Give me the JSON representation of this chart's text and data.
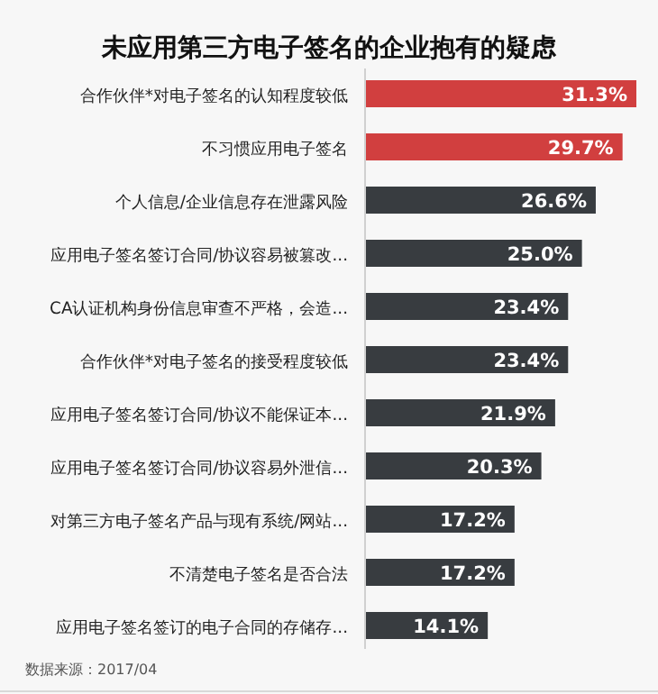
{
  "chart_data": {
    "type": "bar",
    "orientation": "horizontal",
    "title": "未应用第三方电子签名的企业抱有的疑虑",
    "categories": [
      "合作伙伴*对电子签名的认知程度较低",
      "不习惯应用电子签名",
      "个人信息/企业信息存在泄露风险",
      "应用电子签名签订合同/协议容易被篡改...",
      "CA认证机构身份信息审查不严格，会造...",
      "合作伙伴*对电子签名的接受程度较低",
      "应用电子签名签订合同/协议不能保证本...",
      "应用电子签名签订合同/协议容易外泄信...",
      "对第三方电子签名产品与现有系统/网站...",
      "不清楚电子签名是否合法",
      "应用电子签名签订的电子合同的存储存..."
    ],
    "values": [
      31.3,
      29.7,
      26.6,
      25.0,
      23.4,
      23.4,
      21.9,
      20.3,
      17.2,
      17.2,
      14.1
    ],
    "value_labels": [
      "31.3%",
      "29.7%",
      "26.6%",
      "25.0%",
      "23.4%",
      "23.4%",
      "21.9%",
      "20.3%",
      "17.2%",
      "17.2%",
      "14.1%"
    ],
    "colors": [
      "#d13f3f",
      "#d13f3f",
      "#383c40",
      "#383c40",
      "#383c40",
      "#383c40",
      "#383c40",
      "#383c40",
      "#383c40",
      "#383c40",
      "#383c40"
    ],
    "annotations": [
      "数据来源：2017/04"
    ]
  }
}
